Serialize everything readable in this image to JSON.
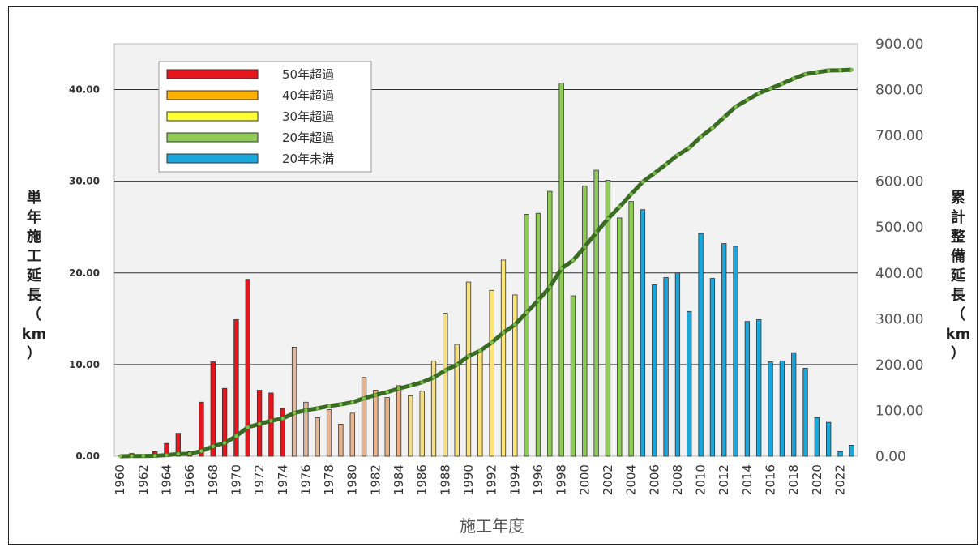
{
  "chart_data": {
    "type": "bar",
    "title": "",
    "xlabel": "施工年度",
    "ylabel_left": [
      "単",
      "年",
      "施",
      "工",
      "延",
      "長",
      "（",
      "km",
      "）"
    ],
    "ylabel_right": [
      "累",
      "計",
      "整",
      "備",
      "延",
      "長",
      "（",
      "km",
      "）"
    ],
    "ylim_left": [
      0,
      45
    ],
    "ylim_right": [
      0,
      900
    ],
    "yticks_left": [
      "0.00",
      "10.00",
      "20.00",
      "30.00",
      "40.00"
    ],
    "yticks_right": [
      "0.00",
      "100.00",
      "200.00",
      "300.00",
      "400.00",
      "500.00",
      "600.00",
      "700.00",
      "800.00",
      "900.00"
    ],
    "x_tick_labels": [
      "1960",
      "1962",
      "1964",
      "1966",
      "1968",
      "1970",
      "1972",
      "1974",
      "1976",
      "1978",
      "1980",
      "1982",
      "1984",
      "1986",
      "1988",
      "1990",
      "1992",
      "1994",
      "1996",
      "1998",
      "2000",
      "2002",
      "2004",
      "2006",
      "2008",
      "2010",
      "2012",
      "2014",
      "2016",
      "2018",
      "2020",
      "2022"
    ],
    "grid": true,
    "legend_position": "top-left",
    "legend": [
      {
        "label": "50年超過",
        "color": "#e8141c"
      },
      {
        "label": "40年超過",
        "color": "#ffb000"
      },
      {
        "label": "30年超過",
        "color": "#ffff33"
      },
      {
        "label": "20年超過",
        "color": "#8fcc55"
      },
      {
        "label": "20年未満",
        "color": "#1aa7dc"
      }
    ],
    "years": [
      1960,
      1961,
      1962,
      1963,
      1964,
      1965,
      1966,
      1967,
      1968,
      1969,
      1970,
      1971,
      1972,
      1973,
      1974,
      1975,
      1976,
      1977,
      1978,
      1979,
      1980,
      1981,
      1982,
      1983,
      1984,
      1985,
      1986,
      1987,
      1988,
      1989,
      1990,
      1991,
      1992,
      1993,
      1994,
      1995,
      1996,
      1997,
      1998,
      1999,
      2000,
      2001,
      2002,
      2003,
      2004,
      2005,
      2006,
      2007,
      2008,
      2009,
      2010,
      2011,
      2012,
      2013,
      2014,
      2015,
      2016,
      2017,
      2018,
      2019,
      2020,
      2021,
      2022,
      2023
    ],
    "series": [
      {
        "type": "bar",
        "axis": "left",
        "values": [
          0.1,
          0.3,
          0.1,
          0.5,
          1.4,
          2.5,
          0.5,
          5.9,
          10.3,
          7.4,
          14.9,
          19.3,
          7.2,
          6.9,
          5.2,
          11.9,
          5.9,
          4.2,
          5.1,
          3.5,
          4.7,
          8.6,
          7.2,
          6.4,
          7.7,
          6.6,
          7.1,
          10.4,
          15.6,
          12.2,
          19.0,
          11.5,
          18.1,
          21.4,
          17.6,
          26.4,
          26.5,
          28.9,
          40.7,
          17.5,
          29.5,
          31.2,
          30.1,
          26.0,
          27.8,
          26.9,
          18.7,
          19.5,
          20.0,
          15.8,
          24.3,
          19.4,
          23.2,
          22.9,
          14.7,
          14.9,
          10.3,
          10.4,
          11.3,
          9.6,
          4.2,
          3.7,
          0.5,
          1.2
        ]
      },
      {
        "type": "line",
        "axis": "right",
        "color": "#3a6b22",
        "values": [
          0.1,
          0.4,
          0.5,
          1.0,
          2.4,
          4.9,
          5.4,
          11.3,
          21.6,
          29.0,
          43.9,
          63.2,
          70.4,
          77.3,
          82.5,
          94.4,
          100.3,
          104.5,
          109.6,
          113.1,
          117.8,
          126.4,
          133.6,
          140.0,
          147.7,
          154.3,
          161.4,
          171.8,
          187.4,
          199.6,
          218.6,
          230.1,
          248.2,
          269.6,
          287.2,
          313.6,
          340.1,
          369.0,
          409.7,
          427.2,
          456.7,
          487.9,
          518.0,
          544.0,
          571.8,
          598.7,
          617.4,
          636.9,
          656.9,
          672.7,
          697.0,
          716.4,
          739.6,
          762.5,
          777.2,
          792.1,
          802.4,
          812.8,
          824.1,
          833.7,
          837.9,
          841.6,
          842.1,
          843.3
        ]
      }
    ]
  }
}
